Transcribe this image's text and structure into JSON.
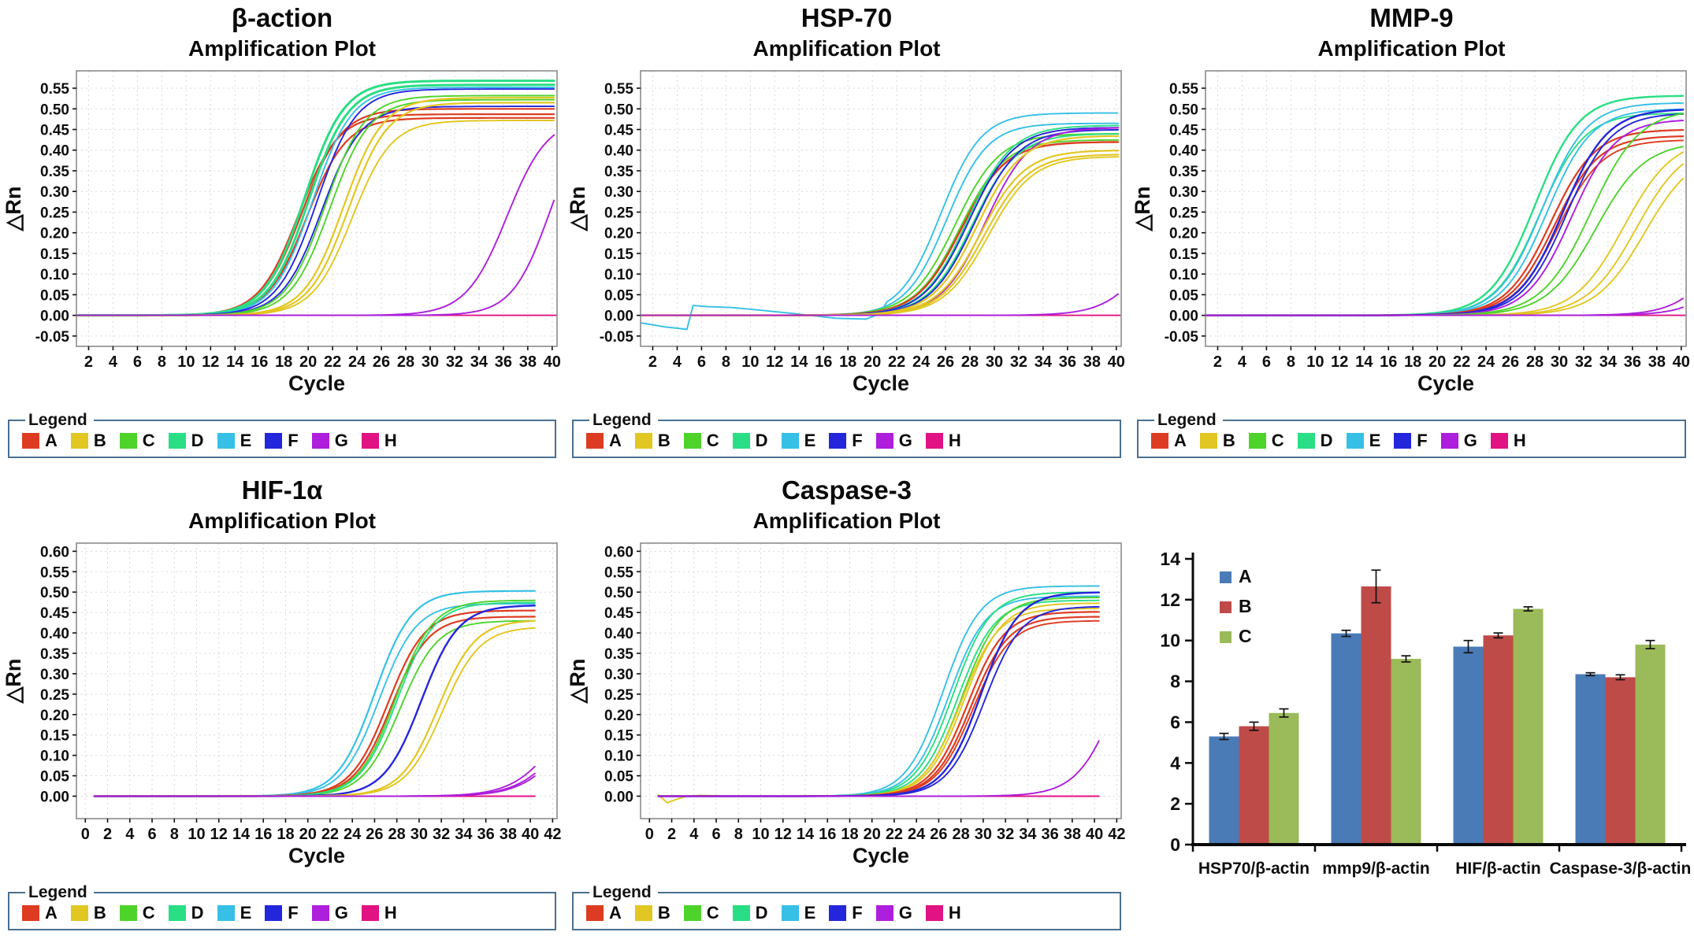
{
  "legend": {
    "title": "Legend",
    "items": [
      "A",
      "B",
      "C",
      "D",
      "E",
      "F",
      "G",
      "H"
    ]
  },
  "series_colors": {
    "A": "#dd3c22",
    "B": "#e2c621",
    "C": "#4ed32b",
    "D": "#29de84",
    "E": "#36c0e6",
    "F": "#2426dc",
    "G": "#ad1edd",
    "H": "#e01284"
  },
  "chart_data": [
    {
      "type": "line",
      "gene": "β-action",
      "subtitle": "Amplification Plot",
      "xlabel": "Cycle",
      "ylabel": "△Rn",
      "x_ticks": [
        2,
        4,
        6,
        8,
        10,
        12,
        14,
        16,
        18,
        20,
        22,
        24,
        26,
        28,
        30,
        32,
        34,
        36,
        38,
        40
      ],
      "y_ticks": [
        0.55,
        0.5,
        0.45,
        0.4,
        0.35,
        0.3,
        0.25,
        0.2,
        0.15,
        0.1,
        0.05,
        0.0,
        -0.05
      ],
      "y_decimals": 2,
      "x_range": [
        1,
        40.4
      ],
      "y_range": [
        -0.075,
        0.592
      ],
      "x_start": 1,
      "x_end": 40.3,
      "k_default": 0.62,
      "grid": true,
      "legend_position": "bottom",
      "curves": [
        {
          "s": "H",
          "flat": true
        },
        {
          "s": "A",
          "ct": 19.2,
          "p": 0.487,
          "w": 2.2
        },
        {
          "s": "A",
          "ct": 19.5,
          "p": 0.5,
          "w": 2.2
        },
        {
          "s": "A",
          "ct": 19.9,
          "p": 0.478,
          "w": 2.2
        },
        {
          "s": "D",
          "ct": 19.7,
          "p": 0.568,
          "w": 3.0
        },
        {
          "s": "D",
          "ct": 20.05,
          "p": 0.558,
          "w": 3.0
        },
        {
          "s": "E",
          "ct": 20.35,
          "p": 0.552
        },
        {
          "s": "F",
          "ct": 20.7,
          "p": 0.548
        },
        {
          "s": "F",
          "ct": 21.1,
          "p": 0.506
        },
        {
          "s": "C",
          "ct": 21.4,
          "p": 0.532
        },
        {
          "s": "C",
          "ct": 21.8,
          "p": 0.522
        },
        {
          "s": "B",
          "ct": 22.9,
          "p": 0.527,
          "w": 2.2
        },
        {
          "s": "B",
          "ct": 23.3,
          "p": 0.515,
          "w": 2.2
        },
        {
          "s": "B",
          "ct": 23.6,
          "p": 0.472
        },
        {
          "s": "G",
          "ct": 36.3,
          "p": 0.48,
          "k": 0.6
        },
        {
          "s": "G",
          "ct": 39.8,
          "p": 0.5,
          "k": 0.65
        }
      ]
    },
    {
      "type": "line",
      "gene": "HSP-70",
      "subtitle": "Amplification Plot",
      "xlabel": "Cycle",
      "ylabel": "△Rn",
      "x_ticks": [
        2,
        4,
        6,
        8,
        10,
        12,
        14,
        16,
        18,
        20,
        22,
        24,
        26,
        28,
        30,
        32,
        34,
        36,
        38,
        40
      ],
      "y_ticks": [
        0.55,
        0.5,
        0.45,
        0.4,
        0.35,
        0.3,
        0.25,
        0.2,
        0.15,
        0.1,
        0.05,
        0.0,
        -0.05
      ],
      "y_decimals": 2,
      "x_range": [
        1,
        40.4
      ],
      "y_range": [
        -0.075,
        0.592
      ],
      "x_start": 1,
      "x_end": 40.3,
      "k_default": 0.55,
      "grid": true,
      "legend_position": "bottom",
      "curves": [
        {
          "s": "H",
          "flat": true
        },
        {
          "s": "E",
          "ct": 25.6,
          "p": 0.49,
          "k": 0.6,
          "pre": [
            [
              1,
              -0.018
            ],
            [
              2,
              -0.023
            ],
            [
              3,
              -0.028
            ],
            [
              4,
              -0.031
            ],
            [
              4.8,
              -0.034
            ],
            [
              5.3,
              0.024
            ],
            [
              6.5,
              0.021
            ],
            [
              8.5,
              0.019
            ],
            [
              11,
              0.012
            ],
            [
              14,
              0.003
            ],
            [
              17,
              -0.007
            ],
            [
              19.5,
              -0.009
            ],
            [
              20.6,
              0.004
            ]
          ]
        },
        {
          "s": "E",
          "ct": 26.1,
          "p": 0.465,
          "k": 0.6
        },
        {
          "s": "C",
          "ct": 26.8,
          "p": 0.44
        },
        {
          "s": "C",
          "ct": 27.2,
          "p": 0.425
        },
        {
          "s": "A",
          "ct": 27.3,
          "p": 0.42,
          "w": 2.4
        },
        {
          "s": "D",
          "ct": 27.8,
          "p": 0.46
        },
        {
          "s": "D",
          "ct": 28.2,
          "p": 0.44
        },
        {
          "s": "F",
          "ct": 27.9,
          "p": 0.455
        },
        {
          "s": "F",
          "ct": 28.4,
          "p": 0.45
        },
        {
          "s": "G",
          "ct": 29.3,
          "p": 0.455
        },
        {
          "s": "B",
          "ct": 28.6,
          "p": 0.435,
          "w": 2.2
        },
        {
          "s": "B",
          "ct": 28.9,
          "p": 0.4,
          "w": 2.2
        },
        {
          "s": "B",
          "ct": 29.2,
          "p": 0.39,
          "w": 2.2
        },
        {
          "s": "B",
          "ct": 29.5,
          "p": 0.385
        },
        {
          "s": "G",
          "ct": 43.0,
          "p": 0.3
        }
      ]
    },
    {
      "type": "line",
      "gene": "MMP-9",
      "subtitle": "Amplification Plot",
      "xlabel": "Cycle",
      "ylabel": "△Rn",
      "x_ticks": [
        2,
        4,
        6,
        8,
        10,
        12,
        14,
        16,
        18,
        20,
        22,
        24,
        26,
        28,
        30,
        32,
        34,
        36,
        38,
        40
      ],
      "y_ticks": [
        0.55,
        0.5,
        0.45,
        0.4,
        0.35,
        0.3,
        0.25,
        0.2,
        0.15,
        0.1,
        0.05,
        0.0,
        -0.05
      ],
      "y_decimals": 2,
      "x_range": [
        1,
        40.4
      ],
      "y_range": [
        -0.075,
        0.592
      ],
      "x_start": 1,
      "x_end": 40.3,
      "k_default": 0.55,
      "grid": true,
      "legend_position": "bottom",
      "curves": [
        {
          "s": "H",
          "flat": true
        },
        {
          "s": "D",
          "ct": 28.0,
          "p": 0.532,
          "w": 2.4
        },
        {
          "s": "D",
          "ct": 28.4,
          "p": 0.49
        },
        {
          "s": "E",
          "ct": 28.6,
          "p": 0.515
        },
        {
          "s": "E",
          "ct": 29.0,
          "p": 0.5
        },
        {
          "s": "A",
          "ct": 29.3,
          "p": 0.45,
          "w": 2.2
        },
        {
          "s": "A",
          "ct": 29.6,
          "p": 0.435,
          "w": 2.2
        },
        {
          "s": "A",
          "ct": 29.9,
          "p": 0.425
        },
        {
          "s": "F",
          "ct": 30.3,
          "p": 0.5,
          "w": 2.4
        },
        {
          "s": "F",
          "ct": 30.6,
          "p": 0.49
        },
        {
          "s": "G",
          "ct": 31.0,
          "p": 0.475
        },
        {
          "s": "C",
          "ct": 32.6,
          "p": 0.5,
          "k": 0.5
        },
        {
          "s": "C",
          "ct": 33.0,
          "p": 0.42,
          "k": 0.5
        },
        {
          "s": "B",
          "ct": 35.3,
          "p": 0.43,
          "k": 0.5
        },
        {
          "s": "B",
          "ct": 36.3,
          "p": 0.42,
          "k": 0.5
        },
        {
          "s": "B",
          "ct": 37.0,
          "p": 0.4,
          "k": 0.5
        },
        {
          "s": "G",
          "ct": 43.5,
          "p": 0.3
        },
        {
          "s": "G",
          "ct": 45.0,
          "p": 0.3
        }
      ]
    },
    {
      "type": "line",
      "gene": "HIF-1α",
      "subtitle": "Amplification Plot",
      "xlabel": "Cycle",
      "ylabel": "△Rn",
      "x_ticks": [
        0,
        2,
        4,
        6,
        8,
        10,
        12,
        14,
        16,
        18,
        20,
        22,
        24,
        26,
        28,
        30,
        32,
        34,
        36,
        38,
        40,
        42
      ],
      "y_ticks": [
        0.6,
        0.55,
        0.5,
        0.45,
        0.4,
        0.35,
        0.3,
        0.25,
        0.2,
        0.15,
        0.1,
        0.05,
        0.0
      ],
      "y_decimals": 2,
      "x_range": [
        -0.8,
        42.4
      ],
      "y_range": [
        -0.055,
        0.62
      ],
      "x_start": 0.8,
      "x_end": 40.4,
      "k_default": 0.6,
      "grid": true,
      "legend_position": "bottom",
      "curves": [
        {
          "s": "H",
          "flat": true
        },
        {
          "s": "E",
          "ct": 26.0,
          "p": 0.503,
          "w": 2.2
        },
        {
          "s": "E",
          "ct": 26.4,
          "p": 0.472
        },
        {
          "s": "A",
          "ct": 27.2,
          "p": 0.455,
          "w": 2.2
        },
        {
          "s": "A",
          "ct": 27.5,
          "p": 0.44,
          "w": 2.2
        },
        {
          "s": "C",
          "ct": 27.9,
          "p": 0.48
        },
        {
          "s": "C",
          "ct": 28.3,
          "p": 0.43
        },
        {
          "s": "D",
          "ct": 28.05,
          "p": 0.475
        },
        {
          "s": "F",
          "ct": 30.2,
          "p": 0.468,
          "w": 2.4
        },
        {
          "s": "B",
          "ct": 31.7,
          "p": 0.432,
          "w": 2.2
        },
        {
          "s": "B",
          "ct": 32.1,
          "p": 0.415
        },
        {
          "s": "G",
          "ct": 42.5,
          "p": 0.28,
          "k": 0.5
        },
        {
          "s": "G",
          "ct": 43.0,
          "p": 0.26,
          "k": 0.5
        },
        {
          "s": "G",
          "ct": 43.5,
          "p": 0.28,
          "k": 0.5
        }
      ]
    },
    {
      "type": "line",
      "gene": "Caspase-3",
      "subtitle": "Amplification Plot",
      "xlabel": "Cycle",
      "ylabel": "△Rn",
      "x_ticks": [
        0,
        2,
        4,
        6,
        8,
        10,
        12,
        14,
        16,
        18,
        20,
        22,
        24,
        26,
        28,
        30,
        32,
        34,
        36,
        38,
        40,
        42
      ],
      "y_ticks": [
        0.6,
        0.55,
        0.5,
        0.45,
        0.4,
        0.35,
        0.3,
        0.25,
        0.2,
        0.15,
        0.1,
        0.05,
        0.0
      ],
      "y_decimals": 2,
      "x_range": [
        -0.8,
        42.4
      ],
      "y_range": [
        -0.055,
        0.62
      ],
      "x_start": 0.8,
      "x_end": 40.4,
      "k_default": 0.6,
      "grid": true,
      "legend_position": "bottom",
      "curves": [
        {
          "s": "H",
          "flat": true
        },
        {
          "s": "E",
          "ct": 26.4,
          "p": 0.515
        },
        {
          "s": "E",
          "ct": 26.9,
          "p": 0.49
        },
        {
          "s": "D",
          "ct": 27.3,
          "p": 0.5
        },
        {
          "s": "D",
          "ct": 27.7,
          "p": 0.48
        },
        {
          "s": "C",
          "ct": 28.1,
          "p": 0.487
        },
        {
          "s": "B",
          "ct": 28.0,
          "p": 0.46,
          "pre": [
            [
              0.8,
              0.003
            ],
            [
              1.6,
              -0.016
            ],
            [
              2.4,
              -0.008
            ],
            [
              3.2,
              -0.001
            ],
            [
              4.5,
              0.002
            ],
            [
              6,
              0.001
            ]
          ]
        },
        {
          "s": "B",
          "ct": 28.3,
          "p": 0.473
        },
        {
          "s": "A",
          "ct": 28.6,
          "p": 0.452,
          "w": 2.2
        },
        {
          "s": "A",
          "ct": 28.9,
          "p": 0.44,
          "w": 2.2
        },
        {
          "s": "A",
          "ct": 29.1,
          "p": 0.43
        },
        {
          "s": "F",
          "ct": 29.8,
          "p": 0.5,
          "w": 2.4
        },
        {
          "s": "F",
          "ct": 30.1,
          "p": 0.465
        },
        {
          "s": "G",
          "ct": 42.2,
          "p": 0.5,
          "k": 0.55
        }
      ]
    },
    {
      "type": "bar",
      "categories": [
        "HSP70/β-actin",
        "mmp9/β-actin",
        "HIF/β-actin",
        "Caspase-3/β-actin"
      ],
      "series": [
        {
          "name": "A",
          "color": "#4a7bb7",
          "values": [
            5.3,
            10.35,
            9.7,
            8.35
          ],
          "errors": [
            0.15,
            0.15,
            0.3,
            0.07
          ]
        },
        {
          "name": "B",
          "color": "#be4b48",
          "values": [
            5.8,
            12.65,
            10.25,
            8.2
          ],
          "errors": [
            0.2,
            0.8,
            0.12,
            0.12
          ]
        },
        {
          "name": "C",
          "color": "#9bba59",
          "values": [
            6.45,
            9.1,
            11.55,
            9.8
          ],
          "errors": [
            0.2,
            0.15,
            0.1,
            0.2
          ]
        }
      ],
      "y_ticks": [
        0,
        2,
        4,
        6,
        8,
        10,
        12,
        14
      ],
      "ylim": [
        0,
        14
      ],
      "grid": false,
      "legend_position": "top-left"
    }
  ]
}
